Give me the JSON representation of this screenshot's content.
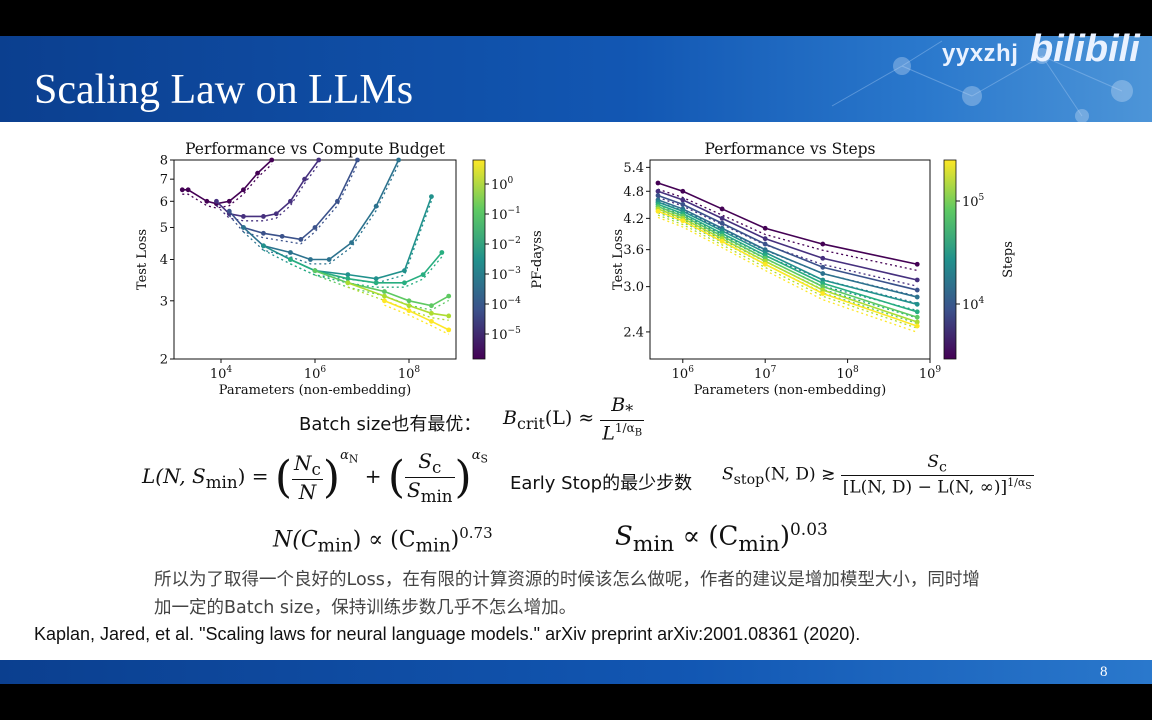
{
  "slide": {
    "title": "Scaling Law on LLMs",
    "page_number": "8",
    "watermark_user": "yyxzhj",
    "watermark_logo": "bilibili"
  },
  "formulas": {
    "batch_label": "Batch size也有最优：",
    "bcrit_lhs": "B",
    "bcrit_sub": "crit",
    "bcrit_arg": "(L) ≈",
    "bcrit_num": "B",
    "bcrit_num_sub": "*",
    "bcrit_den": "L",
    "bcrit_den_exp": "1/α",
    "bcrit_den_exp_sub": "B",
    "loss_lhs": "L(N, S",
    "loss_lhs_sub": "min",
    "loss_lhs_end": ") =",
    "loss_t1_num": "N",
    "loss_t1_num_sub": "c",
    "loss_t1_den": "N",
    "loss_t1_exp": "α",
    "loss_t1_exp_sub": "N",
    "loss_plus": "+",
    "loss_t2_num": "S",
    "loss_t2_num_sub": "c",
    "loss_t2_den": "S",
    "loss_t2_den_sub": "min",
    "loss_t2_exp": "α",
    "loss_t2_exp_sub": "S",
    "early_stop_label": "Early Stop的最少步数",
    "sstop_lhs": "S",
    "sstop_sub": "stop",
    "sstop_arg": "(N, D) ≳",
    "sstop_num": "S",
    "sstop_num_sub": "c",
    "sstop_den": "[L(N, D) − L(N, ∞)]",
    "sstop_den_exp": "1/α",
    "sstop_den_exp_sub": "S",
    "ncmin_a": "N(C",
    "ncmin_a_sub": "min",
    "ncmin_b": ") ∝ (C",
    "ncmin_b_sub": "min",
    "ncmin_c": ")",
    "ncmin_exp": "0.73",
    "smin_a": "S",
    "smin_a_sub": "min",
    "smin_b": " ∝ (C",
    "smin_b_sub": "min",
    "smin_c": ")",
    "smin_exp": "0.03"
  },
  "summary_text": "所以为了取得一个良好的Loss，在有限的计算资源的时候该怎么做呢，作者的建议是增加模型大小，同时增加一定的Batch size，保持训练步数几乎不怎么增加。",
  "citation": "Kaplan, Jared, et al. \"Scaling laws for neural language models.\" arXiv preprint arXiv:2001.08361 (2020).",
  "chart_data": [
    {
      "type": "line",
      "title": "Performance vs Compute Budget",
      "xlabel": "Parameters (non-embedding)",
      "ylabel": "Test Loss",
      "xscale": "log",
      "yscale": "log",
      "xlim": [
        1000,
        1000000000
      ],
      "ylim": [
        2,
        8
      ],
      "x_ticks": [
        10000,
        1000000,
        100000000
      ],
      "x_tick_labels": [
        [
          "10",
          "4"
        ],
        [
          "10",
          "6"
        ],
        [
          "10",
          "8"
        ]
      ],
      "y_ticks": [
        2,
        3,
        4,
        5,
        6,
        7,
        8
      ],
      "y_tick_labels": [
        "2",
        "3",
        "4",
        "5",
        "6",
        "7",
        "8"
      ],
      "colorbar": {
        "label": "PF-dayss",
        "ticks": [
          [
            "10",
            "0"
          ],
          [
            "10",
            "−1"
          ],
          [
            "10",
            "−2"
          ],
          [
            "10",
            "−3"
          ],
          [
            "10",
            "−4"
          ],
          [
            "10",
            "−5"
          ]
        ]
      },
      "grid": false,
      "series": [
        {
          "color": "#440154",
          "x": [
            1500,
            2000,
            5000,
            8000,
            15000,
            30000,
            60000,
            120000
          ],
          "y": [
            6.5,
            6.5,
            6.0,
            5.9,
            6.0,
            6.5,
            7.3,
            8.0
          ]
        },
        {
          "color": "#46307e",
          "x": [
            8000,
            15000,
            30000,
            80000,
            150000,
            300000,
            600000,
            1200000
          ],
          "y": [
            6.0,
            5.5,
            5.4,
            5.4,
            5.5,
            6.0,
            7.0,
            8.0
          ]
        },
        {
          "color": "#3b528b",
          "x": [
            15000,
            30000,
            80000,
            200000,
            500000,
            1000000,
            3000000,
            8000000
          ],
          "y": [
            5.6,
            5.0,
            4.8,
            4.7,
            4.6,
            5.0,
            6.0,
            8.0
          ]
        },
        {
          "color": "#2c728e",
          "x": [
            30000,
            80000,
            300000,
            800000,
            2000000,
            6000000,
            20000000,
            60000000
          ],
          "y": [
            5.0,
            4.4,
            4.2,
            4.0,
            4.0,
            4.5,
            5.8,
            8.0
          ]
        },
        {
          "color": "#21918c",
          "x": [
            80000,
            300000,
            1000000,
            5000000,
            20000000,
            80000000,
            300000000
          ],
          "y": [
            4.4,
            4.0,
            3.7,
            3.6,
            3.5,
            3.7,
            6.2
          ]
        },
        {
          "color": "#28ae80",
          "x": [
            300000,
            1000000,
            5000000,
            20000000,
            80000000,
            200000000,
            500000000
          ],
          "y": [
            4.0,
            3.7,
            3.5,
            3.4,
            3.4,
            3.6,
            4.2
          ]
        },
        {
          "color": "#5ec962",
          "x": [
            1000000,
            5000000,
            30000000,
            100000000,
            300000000,
            700000000
          ],
          "y": [
            3.7,
            3.4,
            3.2,
            3.0,
            2.9,
            3.1
          ]
        },
        {
          "color": "#addc30",
          "x": [
            5000000,
            30000000,
            100000000,
            300000000,
            700000000
          ],
          "y": [
            3.4,
            3.1,
            2.9,
            2.75,
            2.7
          ]
        },
        {
          "color": "#fde725",
          "x": [
            30000000,
            100000000,
            300000000,
            700000000
          ],
          "y": [
            3.0,
            2.8,
            2.6,
            2.45
          ]
        }
      ]
    },
    {
      "type": "line",
      "title": "Performance vs Steps",
      "xlabel": "Parameters (non-embedding)",
      "ylabel": "Test Loss",
      "xscale": "log",
      "yscale": "log",
      "xlim": [
        400000,
        1000000000
      ],
      "ylim": [
        2.1,
        5.6
      ],
      "x_ticks": [
        1000000,
        10000000,
        100000000,
        1000000000
      ],
      "x_tick_labels": [
        [
          "10",
          "6"
        ],
        [
          "10",
          "7"
        ],
        [
          "10",
          "8"
        ],
        [
          "10",
          "9"
        ]
      ],
      "y_ticks": [
        2.4,
        3.0,
        3.6,
        4.2,
        4.8,
        5.4
      ],
      "y_tick_labels": [
        "2.4",
        "3.0",
        "3.6",
        "4.2",
        "4.8",
        "5.4"
      ],
      "colorbar": {
        "label": "Steps",
        "ticks": [
          [
            "10",
            "5"
          ],
          [
            "10",
            "4"
          ]
        ]
      },
      "grid": false,
      "series": [
        {
          "color": "#440154",
          "x": [
            500000,
            1000000,
            3000000,
            10000000,
            50000000,
            700000000
          ],
          "y": [
            5.0,
            4.8,
            4.4,
            4.0,
            3.7,
            3.35
          ]
        },
        {
          "color": "#46307e",
          "x": [
            500000,
            1000000,
            3000000,
            10000000,
            50000000,
            700000000
          ],
          "y": [
            4.8,
            4.6,
            4.2,
            3.8,
            3.45,
            3.1
          ]
        },
        {
          "color": "#3b528b",
          "x": [
            500000,
            1000000,
            3000000,
            10000000,
            50000000,
            700000000
          ],
          "y": [
            4.7,
            4.5,
            4.1,
            3.7,
            3.3,
            2.95
          ]
        },
        {
          "color": "#2c728e",
          "x": [
            500000,
            1000000,
            3000000,
            10000000,
            50000000,
            700000000
          ],
          "y": [
            4.6,
            4.4,
            4.0,
            3.6,
            3.2,
            2.85
          ]
        },
        {
          "color": "#21918c",
          "x": [
            500000,
            1000000,
            3000000,
            10000000,
            50000000,
            700000000
          ],
          "y": [
            4.55,
            4.35,
            3.95,
            3.55,
            3.1,
            2.75
          ]
        },
        {
          "color": "#28ae80",
          "x": [
            500000,
            1000000,
            3000000,
            10000000,
            50000000,
            700000000
          ],
          "y": [
            4.5,
            4.3,
            3.9,
            3.5,
            3.05,
            2.65
          ]
        },
        {
          "color": "#5ec962",
          "x": [
            500000,
            1000000,
            3000000,
            10000000,
            50000000,
            700000000
          ],
          "y": [
            4.45,
            4.25,
            3.85,
            3.45,
            3.0,
            2.58
          ]
        },
        {
          "color": "#addc30",
          "x": [
            500000,
            1000000,
            3000000,
            10000000,
            50000000,
            700000000
          ],
          "y": [
            4.4,
            4.2,
            3.8,
            3.4,
            2.95,
            2.52
          ]
        },
        {
          "color": "#fde725",
          "x": [
            500000,
            1000000,
            3000000,
            10000000,
            50000000,
            700000000
          ],
          "y": [
            4.35,
            4.15,
            3.75,
            3.35,
            2.9,
            2.47
          ]
        }
      ]
    }
  ]
}
